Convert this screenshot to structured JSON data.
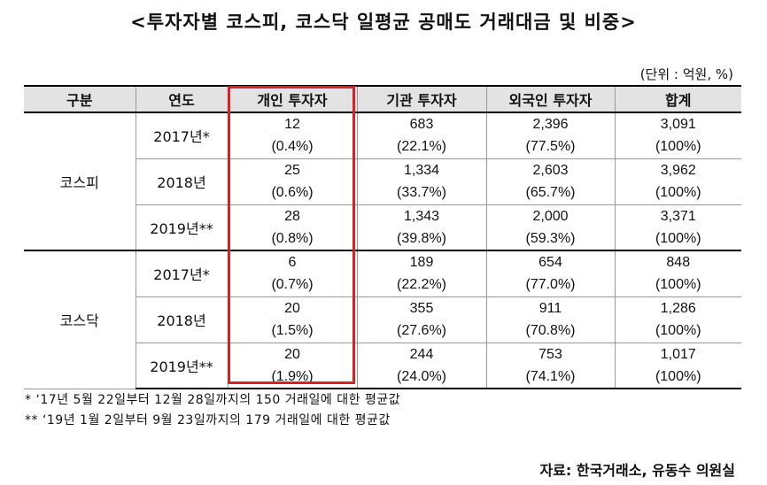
{
  "title": "<투자자별 코스피, 코스닥 일평균 공매도 거래대금 및 비중>",
  "unit": "(단위 : 억원, %)",
  "headers": [
    "구분",
    "연도",
    "개인 투자자",
    "기관 투자자",
    "외국인 투자자",
    "합계"
  ],
  "groups": [
    {
      "name": "코스피",
      "rows": [
        {
          "year": "2017년*",
          "individual": {
            "value": "12",
            "pct": "(0.4%)"
          },
          "institution": {
            "value": "683",
            "pct": "(22.1%)"
          },
          "foreign": {
            "value": "2,396",
            "pct": "(77.5%)"
          },
          "total": {
            "value": "3,091",
            "pct": "(100%)"
          }
        },
        {
          "year": "2018년",
          "individual": {
            "value": "25",
            "pct": "(0.6%)"
          },
          "institution": {
            "value": "1,334",
            "pct": "(33.7%)"
          },
          "foreign": {
            "value": "2,603",
            "pct": "(65.7%)"
          },
          "total": {
            "value": "3,962",
            "pct": "(100%)"
          }
        },
        {
          "year": "2019년**",
          "individual": {
            "value": "28",
            "pct": "(0.8%)"
          },
          "institution": {
            "value": "1,343",
            "pct": "(39.8%)"
          },
          "foreign": {
            "value": "2,000",
            "pct": "(59.3%)"
          },
          "total": {
            "value": "3,371",
            "pct": "(100%)"
          }
        }
      ]
    },
    {
      "name": "코스닥",
      "rows": [
        {
          "year": "2017년*",
          "individual": {
            "value": "6",
            "pct": "(0.7%)"
          },
          "institution": {
            "value": "189",
            "pct": "(22.2%)"
          },
          "foreign": {
            "value": "654",
            "pct": "(77.0%)"
          },
          "total": {
            "value": "848",
            "pct": "(100%)"
          }
        },
        {
          "year": "2018년",
          "individual": {
            "value": "20",
            "pct": "(1.5%)"
          },
          "institution": {
            "value": "355",
            "pct": "(27.6%)"
          },
          "foreign": {
            "value": "911",
            "pct": "(70.8%)"
          },
          "total": {
            "value": "1,286",
            "pct": "(100%)"
          }
        },
        {
          "year": "2019년**",
          "individual": {
            "value": "20",
            "pct": "(1.9%)"
          },
          "institution": {
            "value": "244",
            "pct": "(24.0%)"
          },
          "foreign": {
            "value": "753",
            "pct": "(74.1%)"
          },
          "total": {
            "value": "1,017",
            "pct": "(100%)"
          }
        }
      ]
    }
  ],
  "notes": [
    "* ‘17년 5월 22일부터 12월 28일까지의 150 거래일에 대한 평균값",
    "** ‘19년 1월 2일부터 9월 23일까지의 179 거래일에 대한 평균값"
  ],
  "source": "자료: 한국거래소, 유동수 의원실",
  "colors": {
    "highlight": "#e02020",
    "header_bg": "#e3e3e3"
  }
}
